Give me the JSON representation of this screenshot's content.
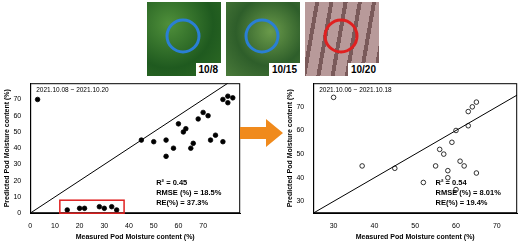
{
  "photos": [
    {
      "label": "10/8",
      "color": "#2a7fd4"
    },
    {
      "label": "10/15",
      "color": "#2a7fd4"
    },
    {
      "label": "10/20",
      "color": "#e02020"
    }
  ],
  "chart_data": [
    {
      "type": "scatter",
      "xlabel": "Measured Pod Moisture content (%)",
      "ylabel": "Predicted Pod Moisture content (%)",
      "annotations": [
        "2021.10.08 ~ 2021.10.20",
        "R² = 0.45",
        "RMSE (%) = 18.5%",
        "RE(%) = 37.3%"
      ],
      "x": [
        3,
        45,
        50,
        55,
        55,
        58,
        60,
        62,
        63,
        65,
        66,
        68,
        70,
        72,
        73,
        75,
        78,
        80,
        82,
        80,
        78,
        15,
        20,
        22,
        28,
        30,
        33,
        35
      ],
      "values": [
        70,
        45,
        44,
        35,
        45,
        40,
        55,
        50,
        52,
        40,
        43,
        58,
        62,
        60,
        45,
        48,
        70,
        72,
        71,
        68,
        44,
        2,
        3,
        3,
        4,
        3,
        4,
        2
      ],
      "color": "#000000",
      "marker": "filled",
      "highlight_box": {
        "x": [
          12,
          38
        ],
        "y": [
          0,
          8
        ],
        "color": "#e02020"
      },
      "xlim": [
        0,
        85
      ],
      "xticks": [
        0,
        10,
        20,
        30,
        40,
        50,
        60,
        70
      ],
      "ylim": [
        0,
        80
      ],
      "yticks": [
        0,
        10,
        20,
        30,
        40,
        50,
        60,
        70
      ],
      "grid": false
    },
    {
      "type": "scatter",
      "xlabel": "Measured Pod Moisture content (%)",
      "ylabel": "Predicted Pod Moisture content (%)",
      "annotations": [
        "2021.10.06 ~ 2021.10.18",
        "R² = 0.54",
        "RMSE (%) = 8.01%",
        "RE(%) = 19.4%"
      ],
      "x": [
        30,
        37,
        45,
        52,
        55,
        56,
        57,
        58,
        58,
        59,
        60,
        61,
        62,
        63,
        63,
        64,
        65,
        65,
        60
      ],
      "values": [
        74,
        45,
        44,
        38,
        45,
        52,
        50,
        40,
        43,
        55,
        60,
        47,
        45,
        62,
        68,
        70,
        72,
        42,
        35
      ],
      "color": "#000000",
      "marker": "open",
      "xlim": [
        25,
        75
      ],
      "xticks": [
        30,
        40,
        50,
        60,
        70
      ],
      "ylim": [
        25,
        80
      ],
      "yticks": [
        30,
        40,
        50,
        60,
        70
      ],
      "grid": false
    }
  ]
}
